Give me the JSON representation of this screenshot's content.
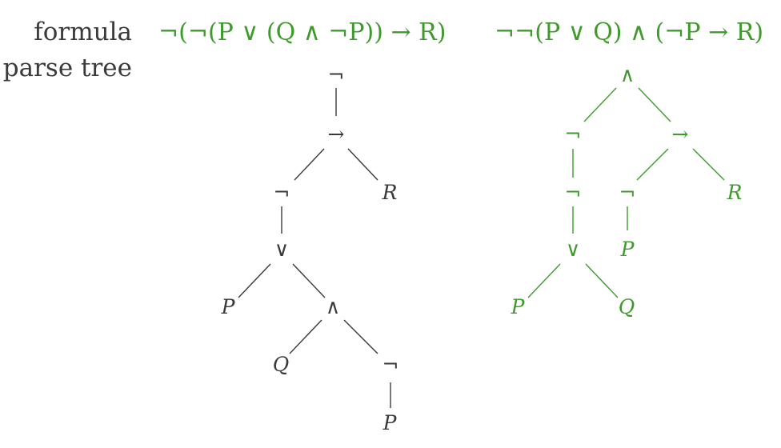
{
  "labels": {
    "formula": "formula",
    "parse_tree": "parse tree"
  },
  "colors": {
    "text": "#3a3a3a",
    "green": "#3f9a2c"
  },
  "left": {
    "formula": "¬(¬(P ∨ (Q ∧ ¬P)) → R)",
    "nodes": {
      "n_root": "¬",
      "n_impl": "→",
      "n_neg": "¬",
      "n_R": "R",
      "n_or": "∨",
      "n_P": "P",
      "n_and": "∧",
      "n_Q": "Q",
      "n_neg2": "¬",
      "n_P2": "P"
    }
  },
  "right": {
    "formula": "¬¬(P ∨ Q) ∧ (¬P → R)",
    "nodes": {
      "n_and": "∧",
      "n_neg1": "¬",
      "n_impl": "→",
      "n_neg2": "¬",
      "n_neg3": "¬",
      "n_R": "R",
      "n_or": "∨",
      "n_P3": "P",
      "n_P": "P",
      "n_Q": "Q"
    }
  }
}
